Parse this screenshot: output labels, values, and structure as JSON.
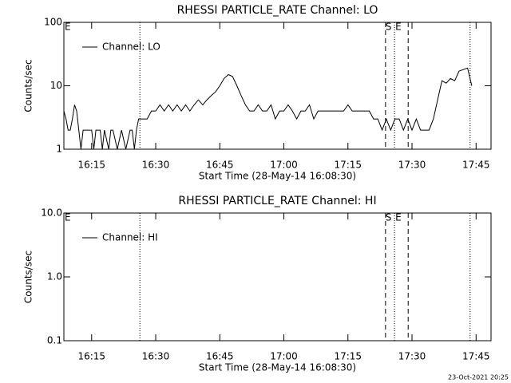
{
  "chart_data": [
    {
      "type": "line",
      "title": "RHESSI PARTICLE_RATE Channel: LO",
      "xlabel": "Start Time (28-May-14 16:08:30)",
      "ylabel": "Counts/sec",
      "corner_label": "E",
      "xlim": [
        8.5,
        108.5
      ],
      "xticks": [
        {
          "value": 15,
          "label": "16:15"
        },
        {
          "value": 30,
          "label": "16:30"
        },
        {
          "value": 45,
          "label": "16:45"
        },
        {
          "value": 60,
          "label": "17:00"
        },
        {
          "value": 75,
          "label": "17:15"
        },
        {
          "value": 90,
          "label": "17:30"
        },
        {
          "value": 105,
          "label": "17:45"
        }
      ],
      "ylim": [
        1,
        100
      ],
      "yticks": [
        100,
        10,
        1
      ],
      "log_y": true,
      "legend": "upper left",
      "markers": [
        {
          "x": 26.3,
          "style": "dotted"
        },
        {
          "x": 83.8,
          "style": "dashed"
        },
        {
          "x": 85.9,
          "style": "dotted"
        },
        {
          "x": 89.1,
          "style": "dashed"
        },
        {
          "x": 103.6,
          "style": "dotted"
        }
      ],
      "marker_labels": [
        {
          "x": 84.5,
          "text": "S"
        },
        {
          "x": 86.8,
          "text": "E"
        }
      ],
      "series": [
        {
          "name": "Channel: LO",
          "color": "#000000",
          "x": [
            8.5,
            9,
            9.5,
            10,
            10.5,
            11,
            11.5,
            12,
            12.5,
            13,
            14,
            15,
            15.5,
            16,
            17,
            17.5,
            18,
            19,
            19.5,
            20,
            21,
            22,
            23,
            24,
            24.5,
            25,
            25.5,
            26,
            27,
            28,
            29,
            30,
            31,
            32,
            33,
            34,
            35,
            36,
            37,
            38,
            39,
            40,
            41,
            42,
            43,
            44,
            45,
            46,
            47,
            48,
            49,
            50,
            51,
            52,
            53,
            54,
            55,
            56,
            57,
            58,
            59,
            60,
            61,
            62,
            63,
            64,
            65,
            66,
            67,
            68,
            69,
            70,
            71,
            72,
            73,
            74,
            75,
            76,
            77,
            78,
            79,
            80,
            81,
            82,
            83,
            84,
            85,
            86,
            87,
            88,
            89,
            90,
            91,
            92,
            93,
            94,
            95,
            96,
            97,
            98,
            99,
            100,
            101,
            102,
            103,
            104
          ],
          "values": [
            4,
            3,
            2,
            2,
            3,
            5,
            4,
            2,
            1,
            2,
            2,
            2,
            1,
            2,
            2,
            1,
            2,
            1,
            2,
            2,
            1,
            2,
            1,
            2,
            2,
            1,
            2,
            3,
            3,
            3,
            4,
            4,
            5,
            4,
            5,
            4,
            5,
            4,
            5,
            4,
            5,
            6,
            5,
            6,
            7,
            8,
            10,
            13,
            15,
            14,
            10,
            7,
            5,
            4,
            4,
            5,
            4,
            4,
            5,
            3,
            4,
            4,
            5,
            4,
            3,
            4,
            4,
            5,
            3,
            4,
            4,
            4,
            4,
            4,
            4,
            4,
            5,
            4,
            4,
            4,
            4,
            4,
            3,
            3,
            2,
            3,
            2,
            3,
            3,
            2,
            3,
            2,
            3,
            2,
            2,
            2,
            3,
            6,
            12,
            11,
            13,
            12,
            17,
            18,
            19,
            10
          ]
        }
      ]
    },
    {
      "type": "line",
      "title": "RHESSI PARTICLE_RATE Channel: HI",
      "xlabel": "Start Time (28-May-14 16:08:30)",
      "ylabel": "Counts/sec",
      "corner_label": "E",
      "xlim": [
        8.5,
        108.5
      ],
      "xticks": [
        {
          "value": 15,
          "label": "16:15"
        },
        {
          "value": 30,
          "label": "16:30"
        },
        {
          "value": 45,
          "label": "16:45"
        },
        {
          "value": 60,
          "label": "17:00"
        },
        {
          "value": 75,
          "label": "17:15"
        },
        {
          "value": 90,
          "label": "17:30"
        },
        {
          "value": 105,
          "label": "17:45"
        }
      ],
      "ylim": [
        0.1,
        10
      ],
      "yticks": [
        {
          "value": 10,
          "label": "10.0"
        },
        {
          "value": 1,
          "label": "1.0"
        },
        0.1
      ],
      "log_y": true,
      "legend": "upper left",
      "markers": [
        {
          "x": 26.3,
          "style": "dotted"
        },
        {
          "x": 83.8,
          "style": "dashed"
        },
        {
          "x": 85.9,
          "style": "dotted"
        },
        {
          "x": 89.1,
          "style": "dashed"
        },
        {
          "x": 103.6,
          "style": "dotted"
        }
      ],
      "marker_labels": [
        {
          "x": 84.5,
          "text": "S"
        },
        {
          "x": 86.8,
          "text": "E"
        }
      ],
      "series": [
        {
          "name": "Channel: HI",
          "color": "#000000",
          "x": [],
          "values": []
        }
      ]
    }
  ],
  "footer": "23-Oct-2021 20:25"
}
